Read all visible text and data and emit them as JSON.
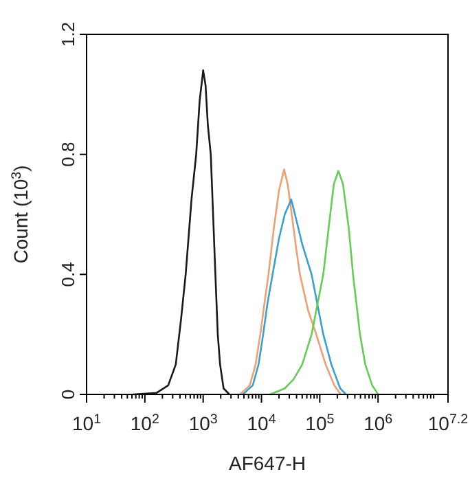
{
  "chart_data": {
    "type": "line",
    "xlabel": "AF647-H",
    "ylabel": "Count (10$^{3}$)",
    "log": "x",
    "grid": false,
    "xlim": [
      10,
      15848932
    ],
    "ylim": [
      0,
      1.2
    ],
    "yticks": [
      0,
      0.4,
      0.8,
      1.2
    ],
    "xticks": [
      {
        "value": 10,
        "label": "10$^{1}$"
      },
      {
        "value": 100,
        "label": "10$^{2}$"
      },
      {
        "value": 1000,
        "label": "10$^{3}$"
      },
      {
        "value": 10000,
        "label": "10$^{4}$"
      },
      {
        "value": 100000,
        "label": "10$^{5}$"
      },
      {
        "value": 1000000,
        "label": "10$^{6}$"
      },
      {
        "value": 15848932,
        "label": "10$^{7.2}$"
      },
      {
        "value": 20,
        "label": null
      },
      {
        "value": 30,
        "label": null
      },
      {
        "value": 40,
        "label": null
      },
      {
        "value": 50,
        "label": null
      },
      {
        "value": 60,
        "label": null
      },
      {
        "value": 70,
        "label": null
      },
      {
        "value": 80,
        "label": null
      },
      {
        "value": 90,
        "label": null
      },
      {
        "value": 200,
        "label": null
      },
      {
        "value": 300,
        "label": null
      },
      {
        "value": 400,
        "label": null
      },
      {
        "value": 500,
        "label": null
      },
      {
        "value": 600,
        "label": null
      },
      {
        "value": 700,
        "label": null
      },
      {
        "value": 800,
        "label": null
      },
      {
        "value": 900,
        "label": null
      },
      {
        "value": 2000,
        "label": null
      },
      {
        "value": 3000,
        "label": null
      },
      {
        "value": 4000,
        "label": null
      },
      {
        "value": 5000,
        "label": null
      },
      {
        "value": 6000,
        "label": null
      },
      {
        "value": 7000,
        "label": null
      },
      {
        "value": 8000,
        "label": null
      },
      {
        "value": 9000,
        "label": null
      },
      {
        "value": 20000,
        "label": null
      },
      {
        "value": 30000,
        "label": null
      },
      {
        "value": 40000,
        "label": null
      },
      {
        "value": 50000,
        "label": null
      },
      {
        "value": 60000,
        "label": null
      },
      {
        "value": 70000,
        "label": null
      },
      {
        "value": 80000,
        "label": null
      },
      {
        "value": 90000,
        "label": null
      },
      {
        "value": 200000,
        "label": null
      },
      {
        "value": 300000,
        "label": null
      },
      {
        "value": 400000,
        "label": null
      },
      {
        "value": 500000,
        "label": null
      },
      {
        "value": 600000,
        "label": null
      },
      {
        "value": 700000,
        "label": null
      },
      {
        "value": 800000,
        "label": null
      },
      {
        "value": 900000,
        "label": null
      },
      {
        "value": 2000000,
        "label": null
      },
      {
        "value": 3000000,
        "label": null
      },
      {
        "value": 4000000,
        "label": null
      },
      {
        "value": 5000000,
        "label": null
      },
      {
        "value": 6000000,
        "label": null
      },
      {
        "value": 7000000,
        "label": null
      },
      {
        "value": 8000000,
        "label": null
      },
      {
        "value": 9000000,
        "label": null
      }
    ],
    "series": [
      {
        "color": "#1a1a1a",
        "x": [
          63.1,
          158,
          251,
          339,
          417,
          501,
          631,
          759,
          871,
          1000,
          1100,
          1200,
          1350,
          1480,
          1620,
          1780,
          1950,
          2240,
          2820
        ],
        "values": [
          0,
          0.005,
          0.03,
          0.1,
          0.25,
          0.4,
          0.65,
          0.8,
          0.98,
          1.08,
          1.03,
          0.9,
          0.8,
          0.6,
          0.4,
          0.2,
          0.1,
          0.02,
          0
        ]
      },
      {
        "color": "#f0a070",
        "x": [
          4270,
          6310,
          7940,
          9550,
          11200,
          13200,
          16200,
          20000,
          24500,
          28200,
          33100,
          39800,
          45700,
          63100,
          87100,
          126000,
          178000,
          229000
        ],
        "values": [
          0,
          0.03,
          0.1,
          0.2,
          0.3,
          0.4,
          0.55,
          0.68,
          0.75,
          0.7,
          0.6,
          0.48,
          0.4,
          0.28,
          0.2,
          0.1,
          0.03,
          0
        ]
      },
      {
        "color": "#3aa0d0",
        "x": [
          4790,
          7080,
          8910,
          10700,
          12600,
          15500,
          20000,
          25100,
          32400,
          39800,
          50100,
          72400,
          91200,
          115000,
          158000,
          224000,
          282000
        ],
        "values": [
          0,
          0.03,
          0.1,
          0.2,
          0.3,
          0.4,
          0.52,
          0.6,
          0.65,
          0.58,
          0.5,
          0.4,
          0.3,
          0.2,
          0.1,
          0.02,
          0
        ]
      },
      {
        "color": "#66cc55",
        "x": [
          14100,
          25100,
          35500,
          50100,
          72400,
          91200,
          115000,
          141000,
          174000,
          209000,
          251000,
          316000,
          372000,
          427000,
          490000,
          603000,
          794000,
          1000000
        ],
        "values": [
          0,
          0.02,
          0.05,
          0.1,
          0.2,
          0.3,
          0.4,
          0.55,
          0.7,
          0.745,
          0.7,
          0.55,
          0.4,
          0.3,
          0.2,
          0.1,
          0.03,
          0
        ]
      }
    ]
  }
}
